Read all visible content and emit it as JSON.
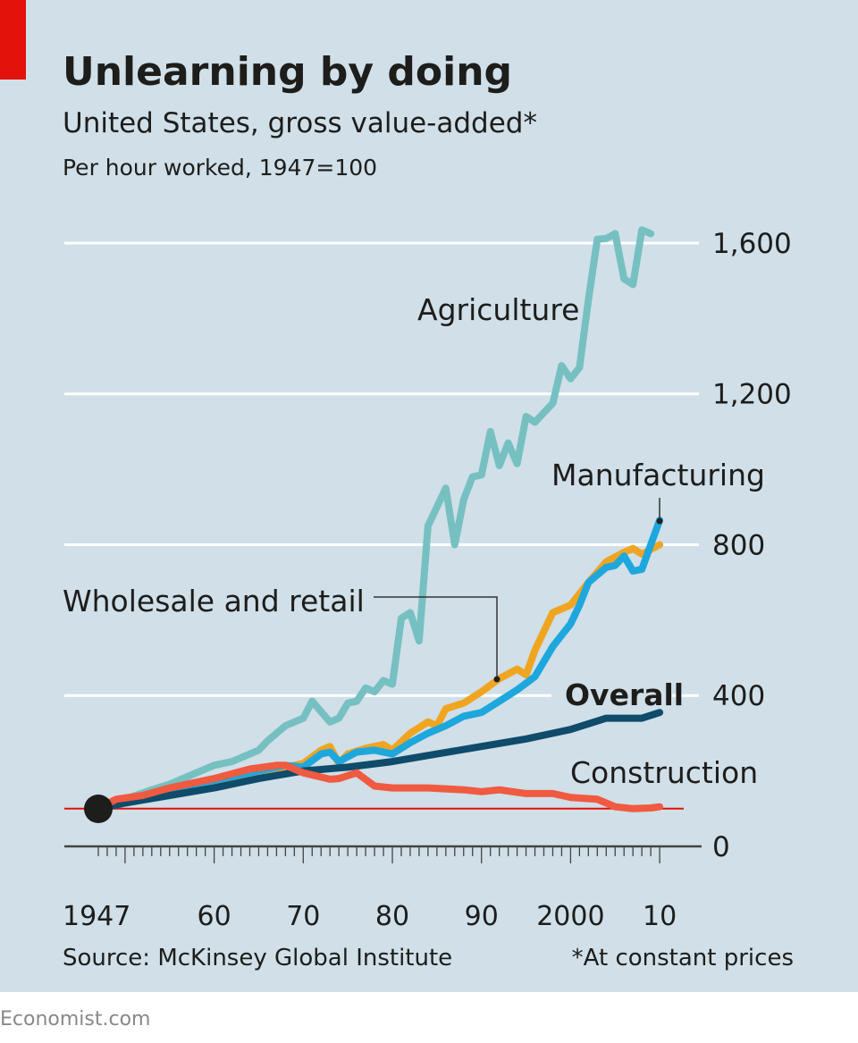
{
  "branding": {
    "accent_color": "#e3120b",
    "footer": "Economist.com"
  },
  "chart_data": {
    "type": "line",
    "title": "Unlearning by doing",
    "subtitle": "United States, gross value-added*",
    "ylabel": "Per hour worked, 1947=100",
    "source": "Source: McKinsey Global Institute",
    "footnote": "*At constant prices",
    "xlim": [
      1947,
      2010
    ],
    "ylim": [
      0,
      1600
    ],
    "x_ticks": [
      {
        "value": 1947,
        "label": "1947"
      },
      {
        "value": 1960,
        "label": "60"
      },
      {
        "value": 1970,
        "label": "70"
      },
      {
        "value": 1980,
        "label": "80"
      },
      {
        "value": 1990,
        "label": "90"
      },
      {
        "value": 2000,
        "label": "2000"
      },
      {
        "value": 2010,
        "label": "10"
      }
    ],
    "y_ticks": [
      {
        "value": 0,
        "label": "0"
      },
      {
        "value": 400,
        "label": "400"
      },
      {
        "value": 800,
        "label": "800"
      },
      {
        "value": 1200,
        "label": "1,200"
      },
      {
        "value": 1600,
        "label": "1,600"
      }
    ],
    "grid": true,
    "baseline": 100,
    "background": "#d0dfe8",
    "series": [
      {
        "name": "Agriculture",
        "color": "#76c0c1",
        "points": [
          [
            1947,
            100
          ],
          [
            1950,
            125
          ],
          [
            1953,
            150
          ],
          [
            1955,
            165
          ],
          [
            1958,
            195
          ],
          [
            1960,
            215
          ],
          [
            1962,
            225
          ],
          [
            1965,
            255
          ],
          [
            1966,
            280
          ],
          [
            1968,
            320
          ],
          [
            1970,
            340
          ],
          [
            1971,
            385
          ],
          [
            1973,
            330
          ],
          [
            1974,
            340
          ],
          [
            1975,
            380
          ],
          [
            1976,
            385
          ],
          [
            1977,
            420
          ],
          [
            1978,
            410
          ],
          [
            1979,
            440
          ],
          [
            1980,
            430
          ],
          [
            1981,
            605
          ],
          [
            1982,
            620
          ],
          [
            1983,
            545
          ],
          [
            1984,
            850
          ],
          [
            1986,
            950
          ],
          [
            1987,
            800
          ],
          [
            1988,
            920
          ],
          [
            1989,
            980
          ],
          [
            1990,
            985
          ],
          [
            1991,
            1100
          ],
          [
            1992,
            1010
          ],
          [
            1993,
            1070
          ],
          [
            1994,
            1015
          ],
          [
            1995,
            1140
          ],
          [
            1996,
            1125
          ],
          [
            1997,
            1150
          ],
          [
            1998,
            1175
          ],
          [
            1999,
            1275
          ],
          [
            2000,
            1240
          ],
          [
            2001,
            1270
          ],
          [
            2002,
            1450
          ],
          [
            2003,
            1610
          ],
          [
            2004,
            1612
          ],
          [
            2005,
            1625
          ],
          [
            2006,
            1505
          ],
          [
            2007,
            1490
          ],
          [
            2008,
            1635
          ],
          [
            2009,
            1625
          ]
        ]
      },
      {
        "name": "Manufacturing",
        "color": "#1ea7dd",
        "points": [
          [
            1947,
            100
          ],
          [
            1950,
            120
          ],
          [
            1955,
            150
          ],
          [
            1960,
            175
          ],
          [
            1965,
            200
          ],
          [
            1968,
            215
          ],
          [
            1970,
            210
          ],
          [
            1972,
            245
          ],
          [
            1973,
            250
          ],
          [
            1974,
            225
          ],
          [
            1976,
            250
          ],
          [
            1978,
            255
          ],
          [
            1980,
            245
          ],
          [
            1982,
            275
          ],
          [
            1984,
            300
          ],
          [
            1986,
            320
          ],
          [
            1988,
            345
          ],
          [
            1990,
            355
          ],
          [
            1992,
            385
          ],
          [
            1994,
            415
          ],
          [
            1996,
            450
          ],
          [
            1998,
            530
          ],
          [
            2000,
            590
          ],
          [
            2001,
            640
          ],
          [
            2002,
            700
          ],
          [
            2004,
            740
          ],
          [
            2005,
            745
          ],
          [
            2006,
            770
          ],
          [
            2007,
            730
          ],
          [
            2008,
            735
          ],
          [
            2009,
            800
          ],
          [
            2010,
            865
          ]
        ]
      },
      {
        "name": "Wholesale and retail",
        "color": "#f0a521",
        "points": [
          [
            1947,
            100
          ],
          [
            1950,
            120
          ],
          [
            1955,
            145
          ],
          [
            1960,
            170
          ],
          [
            1965,
            195
          ],
          [
            1968,
            210
          ],
          [
            1970,
            220
          ],
          [
            1972,
            255
          ],
          [
            1973,
            265
          ],
          [
            1974,
            220
          ],
          [
            1975,
            245
          ],
          [
            1977,
            260
          ],
          [
            1979,
            270
          ],
          [
            1980,
            255
          ],
          [
            1982,
            300
          ],
          [
            1984,
            330
          ],
          [
            1985,
            320
          ],
          [
            1986,
            365
          ],
          [
            1988,
            380
          ],
          [
            1990,
            410
          ],
          [
            1992,
            445
          ],
          [
            1994,
            470
          ],
          [
            1995,
            455
          ],
          [
            1996,
            520
          ],
          [
            1998,
            620
          ],
          [
            2000,
            640
          ],
          [
            2002,
            700
          ],
          [
            2004,
            755
          ],
          [
            2006,
            780
          ],
          [
            2007,
            790
          ],
          [
            2008,
            775
          ],
          [
            2010,
            800
          ]
        ]
      },
      {
        "name": "Overall",
        "color": "#0f4b6a",
        "points": [
          [
            1947,
            100
          ],
          [
            1950,
            115
          ],
          [
            1955,
            135
          ],
          [
            1960,
            155
          ],
          [
            1965,
            180
          ],
          [
            1970,
            200
          ],
          [
            1975,
            210
          ],
          [
            1980,
            225
          ],
          [
            1985,
            245
          ],
          [
            1990,
            265
          ],
          [
            1995,
            285
          ],
          [
            2000,
            310
          ],
          [
            2004,
            340
          ],
          [
            2008,
            340
          ],
          [
            2010,
            355
          ]
        ]
      },
      {
        "name": "Construction",
        "color": "#f05a40",
        "points": [
          [
            1947,
            100
          ],
          [
            1949,
            125
          ],
          [
            1952,
            135
          ],
          [
            1955,
            155
          ],
          [
            1960,
            180
          ],
          [
            1964,
            205
          ],
          [
            1967,
            215
          ],
          [
            1968,
            215
          ],
          [
            1970,
            195
          ],
          [
            1973,
            178
          ],
          [
            1974,
            180
          ],
          [
            1976,
            195
          ],
          [
            1978,
            160
          ],
          [
            1980,
            155
          ],
          [
            1984,
            155
          ],
          [
            1988,
            150
          ],
          [
            1990,
            145
          ],
          [
            1992,
            150
          ],
          [
            1995,
            140
          ],
          [
            1998,
            140
          ],
          [
            2000,
            130
          ],
          [
            2003,
            125
          ],
          [
            2005,
            105
          ],
          [
            2007,
            100
          ],
          [
            2009,
            102
          ],
          [
            2010,
            105
          ]
        ]
      }
    ]
  }
}
